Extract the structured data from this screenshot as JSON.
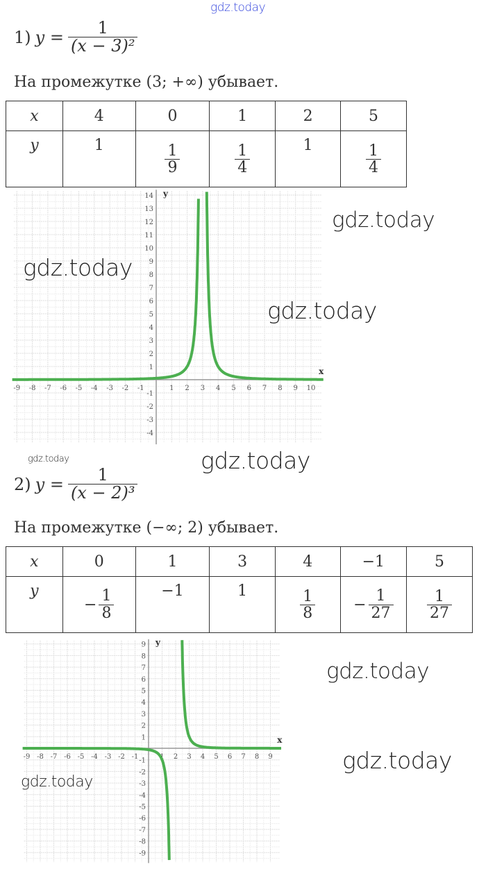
{
  "watermark": "gdz.today",
  "problem1": {
    "number": "1)",
    "lhs": "y =",
    "numerator": "1",
    "denominator": "(x − 3)²",
    "statement": "На промежутке (3; +∞) убывает.",
    "table": {
      "x_label": "x",
      "y_label": "y",
      "x": [
        "4",
        "0",
        "1",
        "2",
        "5"
      ],
      "y": [
        {
          "sign": "",
          "num": "1",
          "den": ""
        },
        {
          "sign": "",
          "num": "1",
          "den": "9"
        },
        {
          "sign": "",
          "num": "1",
          "den": "4"
        },
        {
          "sign": "",
          "num": "1",
          "den": ""
        },
        {
          "sign": "",
          "num": "1",
          "den": "4"
        }
      ]
    }
  },
  "problem2": {
    "number": "2)",
    "lhs": "y =",
    "numerator": "1",
    "denominator": "(x − 2)³",
    "statement": "На промежутке (−∞; 2) убывает.",
    "table": {
      "x_label": "x",
      "y_label": "y",
      "x": [
        "0",
        "1",
        "3",
        "4",
        "−1",
        "5"
      ],
      "y": [
        {
          "sign": "−",
          "num": "1",
          "den": "8"
        },
        {
          "sign": "",
          "num": "−1",
          "den": ""
        },
        {
          "sign": "",
          "num": "1",
          "den": ""
        },
        {
          "sign": "",
          "num": "1",
          "den": "8"
        },
        {
          "sign": "−",
          "num": "1",
          "den": "27"
        },
        {
          "sign": "",
          "num": "1",
          "den": "27"
        }
      ]
    }
  },
  "chart_data": [
    {
      "type": "line",
      "function": "y = 1/(x-3)^2",
      "xlim": [
        -9,
        10
      ],
      "ylim": [
        -4,
        14
      ],
      "xlabel": "x",
      "ylabel": "y",
      "grid": true,
      "color": "#4caf50",
      "x_ticks": [
        "-9",
        "-8",
        "-7",
        "-6",
        "-5",
        "-4",
        "-3",
        "-2",
        "-1",
        "1",
        "2",
        "3",
        "4",
        "5",
        "6",
        "7",
        "8",
        "9",
        "10"
      ],
      "y_ticks": [
        "14",
        "13",
        "12",
        "11",
        "10",
        "9",
        "8",
        "7",
        "6",
        "5",
        "4",
        "3",
        "2",
        "1",
        "-1",
        "-2",
        "-3",
        "-4"
      ]
    },
    {
      "type": "line",
      "function": "y = 1/(x-2)^3",
      "xlim": [
        -9,
        9
      ],
      "ylim": [
        -9,
        9
      ],
      "xlabel": "x",
      "ylabel": "y",
      "grid": true,
      "color": "#4caf50",
      "x_ticks": [
        "-9",
        "-8",
        "-7",
        "-6",
        "-5",
        "-4",
        "-3",
        "-2",
        "-1",
        "1",
        "2",
        "3",
        "4",
        "5",
        "6",
        "7",
        "8",
        "9"
      ],
      "y_ticks": [
        "9",
        "8",
        "7",
        "6",
        "5",
        "4",
        "3",
        "2",
        "1",
        "-1",
        "-2",
        "-3",
        "-4",
        "-5",
        "-6",
        "-7",
        "-8",
        "-9"
      ]
    }
  ]
}
